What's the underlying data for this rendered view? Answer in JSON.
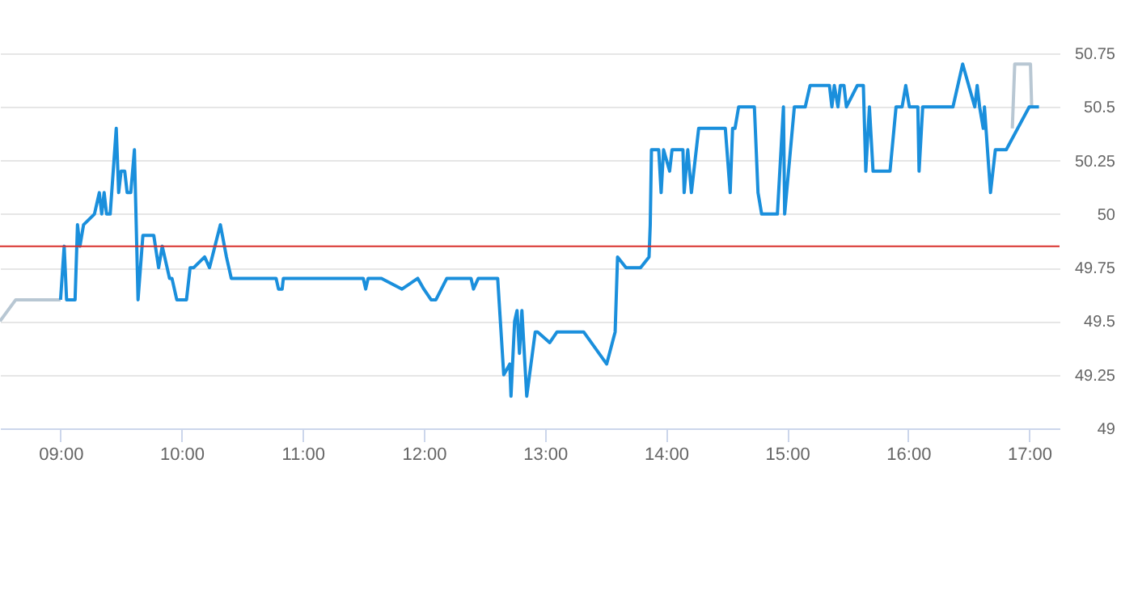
{
  "chart_data": {
    "type": "line",
    "xlim": [
      8.5,
      17.25
    ],
    "xticks": [
      {
        "value": 9,
        "label": "09:00"
      },
      {
        "value": 10,
        "label": "10:00"
      },
      {
        "value": 11,
        "label": "11:00"
      },
      {
        "value": 12,
        "label": "12:00"
      },
      {
        "value": 13,
        "label": "13:00"
      },
      {
        "value": 14,
        "label": "14:00"
      },
      {
        "value": 15,
        "label": "15:00"
      },
      {
        "value": 16,
        "label": "16:00"
      },
      {
        "value": 17,
        "label": "17:00"
      }
    ],
    "ylim": [
      49,
      50.75
    ],
    "yticks": [
      49,
      49.25,
      49.5,
      49.75,
      50,
      50.25,
      50.5,
      50.75
    ],
    "grid": "y",
    "legend": false,
    "marker": "none",
    "line_style": "solid",
    "ref_lines": [
      {
        "axis": "y",
        "value": 49.85,
        "color": "#d9302c"
      }
    ],
    "series": [
      {
        "color": "#b8c7d3",
        "x": [
          8.5,
          8.63,
          9.0,
          null,
          16.86,
          16.88,
          17.01,
          17.02
        ],
        "values": [
          49.5,
          49.6,
          49.6,
          null,
          50.4,
          50.7,
          50.7,
          50.5
        ]
      },
      {
        "color": "#1a8fdc",
        "x": [
          9.0,
          9.03,
          9.05,
          9.12,
          9.14,
          9.16,
          9.19,
          9.28,
          9.32,
          9.34,
          9.36,
          9.38,
          9.41,
          9.46,
          9.48,
          9.5,
          9.53,
          9.55,
          9.58,
          9.61,
          9.64,
          9.68,
          9.77,
          9.81,
          9.84,
          9.9,
          9.92,
          9.96,
          10.04,
          10.07,
          10.1,
          10.19,
          10.23,
          10.32,
          10.37,
          10.41,
          10.78,
          10.8,
          10.83,
          10.84,
          11.5,
          11.52,
          11.54,
          11.65,
          11.82,
          11.95,
          12.0,
          12.06,
          12.1,
          12.19,
          12.39,
          12.41,
          12.45,
          12.61,
          12.66,
          12.71,
          12.72,
          12.75,
          12.77,
          12.79,
          12.81,
          12.85,
          12.92,
          12.94,
          13.04,
          13.1,
          13.32,
          13.51,
          13.58,
          13.6,
          13.67,
          13.79,
          13.86,
          13.87,
          13.88,
          13.94,
          13.96,
          13.98,
          14.03,
          14.05,
          14.14,
          14.15,
          14.18,
          14.21,
          14.27,
          14.49,
          14.53,
          14.55,
          14.57,
          14.6,
          14.73,
          14.76,
          14.79,
          14.92,
          14.97,
          14.98,
          15.06,
          15.15,
          15.19,
          15.35,
          15.37,
          15.39,
          15.42,
          15.44,
          15.47,
          15.49,
          15.58,
          15.63,
          15.65,
          15.68,
          15.71,
          15.85,
          15.9,
          15.95,
          15.98,
          16.01,
          16.08,
          16.09,
          16.12,
          16.37,
          16.45,
          16.55,
          16.57,
          16.59,
          16.62,
          16.63,
          16.68,
          16.72,
          16.81,
          17.0,
          17.08
        ],
        "values": [
          49.6,
          49.85,
          49.6,
          49.6,
          49.95,
          49.85,
          49.95,
          50.0,
          50.1,
          50.0,
          50.1,
          50.0,
          50.0,
          50.4,
          50.1,
          50.2,
          50.2,
          50.1,
          50.1,
          50.3,
          49.6,
          49.9,
          49.9,
          49.75,
          49.85,
          49.7,
          49.7,
          49.6,
          49.6,
          49.75,
          49.75,
          49.8,
          49.75,
          49.95,
          49.8,
          49.7,
          49.7,
          49.65,
          49.65,
          49.7,
          49.7,
          49.65,
          49.7,
          49.7,
          49.65,
          49.7,
          49.65,
          49.6,
          49.6,
          49.7,
          49.7,
          49.65,
          49.7,
          49.7,
          49.25,
          49.3,
          49.15,
          49.5,
          49.55,
          49.35,
          49.55,
          49.15,
          49.45,
          49.45,
          49.4,
          49.45,
          49.45,
          49.3,
          49.45,
          49.8,
          49.75,
          49.75,
          49.8,
          49.95,
          50.3,
          50.3,
          50.1,
          50.3,
          50.2,
          50.3,
          50.3,
          50.1,
          50.3,
          50.1,
          50.4,
          50.4,
          50.1,
          50.4,
          50.4,
          50.5,
          50.5,
          50.1,
          50.0,
          50.0,
          50.5,
          50.0,
          50.5,
          50.5,
          50.6,
          50.6,
          50.5,
          50.6,
          50.5,
          50.6,
          50.6,
          50.5,
          50.6,
          50.6,
          50.2,
          50.5,
          50.2,
          50.2,
          50.5,
          50.5,
          50.6,
          50.5,
          50.5,
          50.2,
          50.5,
          50.5,
          50.7,
          50.5,
          50.6,
          50.5,
          50.4,
          50.5,
          50.1,
          50.3,
          50.3,
          50.5,
          50.5
        ]
      }
    ]
  }
}
